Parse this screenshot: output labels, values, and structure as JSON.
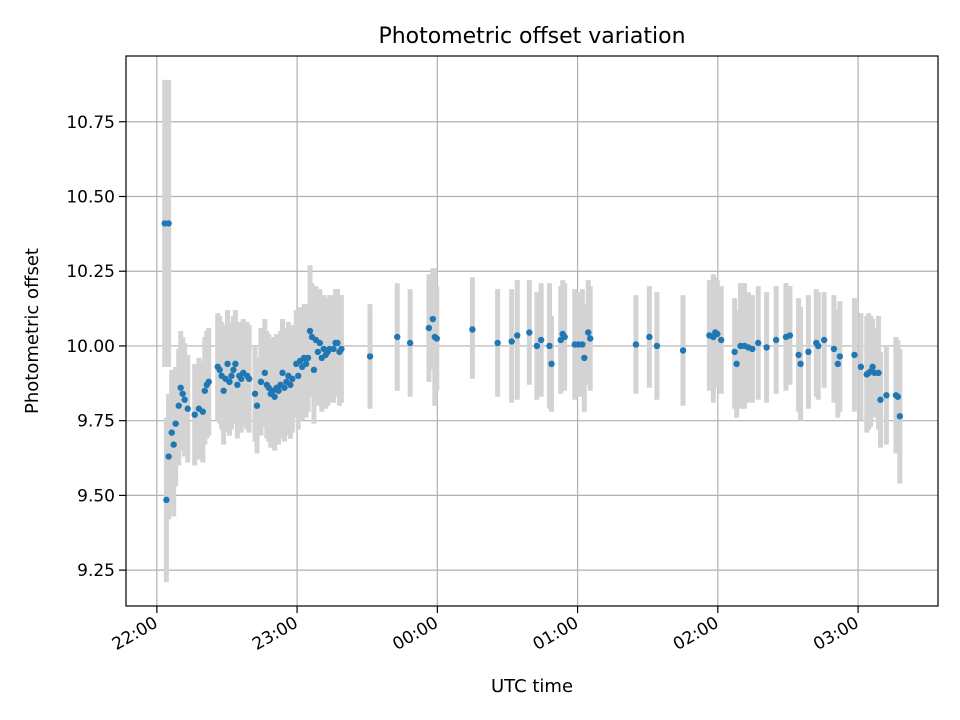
{
  "chart_data": {
    "type": "scatter",
    "title": "Photometric offset variation",
    "xlabel": "UTC time",
    "ylabel": "Photometric offset",
    "x_unit": "hours (UTC, relative to 00:00)",
    "xlim": [
      -2.22,
      3.57
    ],
    "ylim": [
      9.13,
      10.97
    ],
    "x_ticks": [
      {
        "value": -2,
        "label": "22:00"
      },
      {
        "value": -1,
        "label": "23:00"
      },
      {
        "value": 0,
        "label": "00:00"
      },
      {
        "value": 1,
        "label": "01:00"
      },
      {
        "value": 2,
        "label": "02:00"
      },
      {
        "value": 3,
        "label": "03:00"
      }
    ],
    "y_ticks": [
      {
        "value": 9.25,
        "label": "9.25"
      },
      {
        "value": 9.5,
        "label": "9.50"
      },
      {
        "value": 9.75,
        "label": "9.75"
      },
      {
        "value": 10.0,
        "label": "10.00"
      },
      {
        "value": 10.25,
        "label": "10.25"
      },
      {
        "value": 10.5,
        "label": "10.50"
      },
      {
        "value": 10.75,
        "label": "10.75"
      }
    ],
    "grid": true,
    "colors": {
      "point": "#1f77b4",
      "errorbar": "#d3d3d3",
      "grid": "#b0b0b0"
    },
    "series": [
      {
        "points": [
          [
            -1.944,
            10.41,
            10.89,
            9.93
          ],
          [
            -1.916,
            10.41,
            10.89,
            9.93
          ],
          [
            -1.932,
            9.485,
            9.76,
            9.21
          ],
          [
            -1.916,
            9.63,
            9.84,
            9.42
          ],
          [
            -1.894,
            9.71,
            9.92,
            9.5
          ],
          [
            -1.88,
            9.67,
            9.9,
            9.43
          ],
          [
            -1.866,
            9.74,
            9.93,
            9.53
          ],
          [
            -1.844,
            9.8,
            9.99,
            9.6
          ],
          [
            -1.83,
            9.86,
            10.05,
            9.67
          ],
          [
            -1.816,
            9.84,
            10.03,
            9.65
          ],
          [
            -1.802,
            9.82,
            10.01,
            9.63
          ],
          [
            -1.78,
            9.79,
            9.97,
            9.61
          ],
          [
            -1.73,
            9.77,
            9.94,
            9.6
          ],
          [
            -1.7,
            9.79,
            9.96,
            9.62
          ],
          [
            -1.672,
            9.78,
            9.95,
            9.61
          ],
          [
            -1.658,
            9.85,
            10.03,
            9.67
          ],
          [
            -1.644,
            9.87,
            10.05,
            9.69
          ],
          [
            -1.63,
            9.88,
            10.06,
            9.7
          ],
          [
            -1.566,
            9.93,
            10.11,
            9.75
          ],
          [
            -1.552,
            9.92,
            10.1,
            9.74
          ],
          [
            -1.538,
            9.9,
            10.08,
            9.72
          ],
          [
            -1.524,
            9.85,
            10.03,
            9.67
          ],
          [
            -1.51,
            9.89,
            10.07,
            9.71
          ],
          [
            -1.496,
            9.94,
            10.12,
            9.76
          ],
          [
            -1.482,
            9.88,
            10.06,
            9.7
          ],
          [
            -1.468,
            9.9,
            10.08,
            9.72
          ],
          [
            -1.454,
            9.92,
            10.1,
            9.74
          ],
          [
            -1.44,
            9.94,
            10.12,
            9.76
          ],
          [
            -1.426,
            9.87,
            10.05,
            9.69
          ],
          [
            -1.412,
            9.9,
            10.08,
            9.72
          ],
          [
            -1.398,
            9.89,
            10.07,
            9.71
          ],
          [
            -1.384,
            9.91,
            10.09,
            9.73
          ],
          [
            -1.356,
            9.9,
            10.08,
            9.72
          ],
          [
            -1.342,
            9.89,
            10.07,
            9.71
          ],
          [
            -1.3,
            9.84,
            10.0,
            9.68
          ],
          [
            -1.286,
            9.8,
            9.96,
            9.64
          ],
          [
            -1.258,
            9.88,
            10.06,
            9.7
          ],
          [
            -1.23,
            9.91,
            10.09,
            9.73
          ],
          [
            -1.216,
            9.87,
            10.05,
            9.69
          ],
          [
            -1.202,
            9.86,
            10.04,
            9.68
          ],
          [
            -1.188,
            9.84,
            10.02,
            9.66
          ],
          [
            -1.174,
            9.85,
            10.03,
            9.67
          ],
          [
            -1.16,
            9.83,
            10.01,
            9.65
          ],
          [
            -1.146,
            9.86,
            10.04,
            9.68
          ],
          [
            -1.132,
            9.85,
            10.03,
            9.67
          ],
          [
            -1.118,
            9.87,
            10.05,
            9.69
          ],
          [
            -1.104,
            9.91,
            10.09,
            9.73
          ],
          [
            -1.09,
            9.86,
            10.04,
            9.68
          ],
          [
            -1.076,
            9.88,
            10.06,
            9.7
          ],
          [
            -1.062,
            9.9,
            10.08,
            9.72
          ],
          [
            -1.048,
            9.87,
            10.05,
            9.69
          ],
          [
            -1.034,
            9.89,
            10.07,
            9.71
          ],
          [
            -1.006,
            9.94,
            10.12,
            9.76
          ],
          [
            -0.992,
            9.9,
            10.08,
            9.72
          ],
          [
            -0.978,
            9.95,
            10.13,
            9.77
          ],
          [
            -0.964,
            9.93,
            10.11,
            9.75
          ],
          [
            -0.95,
            9.96,
            10.14,
            9.78
          ],
          [
            -0.936,
            9.94,
            10.12,
            9.76
          ],
          [
            -0.922,
            9.96,
            10.14,
            9.78
          ],
          [
            -0.908,
            10.05,
            10.27,
            9.83
          ],
          [
            -0.894,
            10.03,
            10.21,
            9.85
          ],
          [
            -0.88,
            9.92,
            10.1,
            9.74
          ],
          [
            -0.866,
            10.02,
            10.2,
            9.84
          ],
          [
            -0.852,
            9.98,
            10.16,
            9.8
          ],
          [
            -0.838,
            10.01,
            10.19,
            9.83
          ],
          [
            -0.824,
            9.96,
            10.14,
            9.78
          ],
          [
            -0.81,
            9.99,
            10.17,
            9.81
          ],
          [
            -0.796,
            9.97,
            10.15,
            9.79
          ],
          [
            -0.782,
            9.98,
            10.16,
            9.8
          ],
          [
            -0.768,
            9.99,
            10.17,
            9.81
          ],
          [
            -0.74,
            9.99,
            10.17,
            9.81
          ],
          [
            -0.726,
            10.01,
            10.19,
            9.83
          ],
          [
            -0.712,
            10.01,
            10.19,
            9.83
          ],
          [
            -0.698,
            9.98,
            10.16,
            9.8
          ],
          [
            -0.684,
            9.99,
            10.17,
            9.81
          ],
          [
            -0.48,
            9.965,
            10.14,
            9.79
          ],
          [
            -0.286,
            10.03,
            10.21,
            9.85
          ],
          [
            -0.194,
            10.01,
            10.19,
            9.83
          ],
          [
            -0.06,
            10.06,
            10.24,
            9.88
          ],
          [
            -0.032,
            10.09,
            10.26,
            9.92
          ],
          [
            -0.018,
            10.03,
            10.26,
            9.8
          ],
          [
            -0.004,
            10.025,
            10.2,
            9.85
          ],
          [
            0.25,
            10.055,
            10.23,
            9.89
          ],
          [
            0.43,
            10.01,
            10.19,
            9.83
          ],
          [
            0.53,
            10.015,
            10.19,
            9.81
          ],
          [
            0.57,
            10.035,
            10.22,
            9.82
          ],
          [
            0.656,
            10.045,
            10.22,
            9.87
          ],
          [
            0.71,
            10.0,
            10.18,
            9.82
          ],
          [
            0.74,
            10.02,
            10.21,
            9.83
          ],
          [
            0.8,
            10.0,
            10.21,
            9.79
          ],
          [
            0.814,
            9.94,
            10.1,
            9.78
          ],
          [
            0.88,
            10.02,
            10.2,
            9.84
          ],
          [
            0.894,
            10.04,
            10.22,
            9.86
          ],
          [
            0.908,
            10.03,
            10.21,
            9.85
          ],
          [
            0.98,
            10.005,
            10.19,
            9.82
          ],
          [
            1.006,
            10.005,
            10.18,
            9.83
          ],
          [
            1.034,
            10.005,
            10.19,
            9.83
          ],
          [
            1.048,
            9.96,
            10.14,
            9.78
          ],
          [
            1.076,
            10.045,
            10.22,
            9.87
          ],
          [
            1.09,
            10.025,
            10.2,
            9.85
          ],
          [
            1.416,
            10.005,
            10.17,
            9.84
          ],
          [
            1.512,
            10.03,
            10.2,
            9.86
          ],
          [
            1.566,
            10.0,
            10.18,
            9.82
          ],
          [
            1.752,
            9.985,
            10.17,
            9.8
          ],
          [
            1.94,
            10.035,
            10.22,
            9.85
          ],
          [
            1.968,
            10.03,
            10.24,
            9.81
          ],
          [
            1.982,
            10.045,
            10.23,
            9.86
          ],
          [
            1.996,
            10.04,
            10.22,
            9.86
          ],
          [
            2.024,
            10.02,
            10.2,
            9.84
          ],
          [
            2.12,
            9.98,
            10.16,
            9.79
          ],
          [
            2.134,
            9.94,
            10.12,
            9.76
          ],
          [
            2.162,
            10.0,
            10.21,
            9.79
          ],
          [
            2.19,
            10.0,
            10.21,
            9.79
          ],
          [
            2.218,
            9.995,
            10.18,
            9.81
          ],
          [
            2.246,
            9.99,
            10.17,
            9.81
          ],
          [
            2.288,
            10.01,
            10.2,
            9.82
          ],
          [
            2.348,
            9.995,
            10.18,
            9.81
          ],
          [
            2.416,
            10.02,
            10.2,
            9.84
          ],
          [
            2.486,
            10.03,
            10.21,
            9.85
          ],
          [
            2.514,
            10.035,
            10.2,
            9.87
          ],
          [
            2.576,
            9.97,
            10.16,
            9.78
          ],
          [
            2.59,
            9.94,
            10.13,
            9.75
          ],
          [
            2.646,
            9.98,
            10.17,
            9.79
          ],
          [
            2.702,
            10.01,
            10.19,
            9.83
          ],
          [
            2.716,
            10.0,
            10.18,
            9.82
          ],
          [
            2.758,
            10.02,
            10.18,
            9.86
          ],
          [
            2.828,
            9.99,
            10.17,
            9.81
          ],
          [
            2.856,
            9.94,
            10.12,
            9.76
          ],
          [
            2.87,
            9.965,
            10.15,
            9.78
          ],
          [
            2.974,
            9.97,
            10.16,
            9.78
          ],
          [
            3.02,
            9.93,
            10.11,
            9.75
          ],
          [
            3.062,
            9.905,
            10.1,
            9.71
          ],
          [
            3.076,
            9.91,
            10.11,
            9.72
          ],
          [
            3.09,
            9.915,
            10.1,
            9.73
          ],
          [
            3.104,
            9.93,
            10.09,
            9.77
          ],
          [
            3.118,
            9.91,
            10.06,
            9.76
          ],
          [
            3.146,
            9.91,
            10.1,
            9.72
          ],
          [
            3.16,
            9.82,
            9.98,
            9.66
          ],
          [
            3.202,
            9.835,
            10.0,
            9.67
          ],
          [
            3.27,
            9.835,
            10.03,
            9.64
          ],
          [
            3.284,
            9.83,
            10.02,
            9.64
          ],
          [
            3.298,
            9.765,
            9.99,
            9.54
          ]
        ]
      }
    ]
  }
}
